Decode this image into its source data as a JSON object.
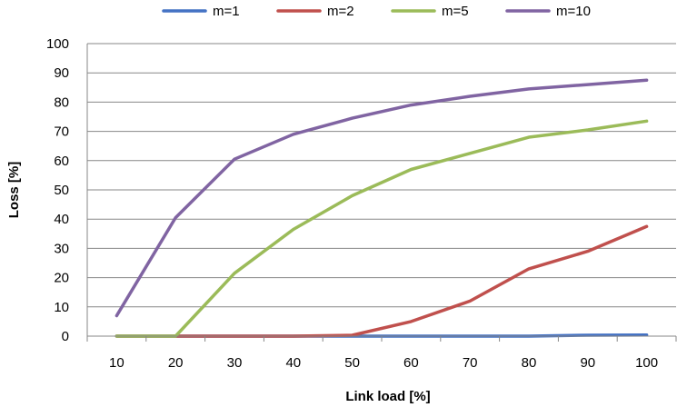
{
  "chart_data": {
    "type": "line",
    "x": [
      10,
      20,
      30,
      40,
      50,
      60,
      70,
      80,
      90,
      100
    ],
    "xlabel": "Link load [%]",
    "ylabel": "Loss [%]",
    "ylim": [
      0,
      100
    ],
    "yticks": [
      0,
      10,
      20,
      30,
      40,
      50,
      60,
      70,
      80,
      90,
      100
    ],
    "grid": true,
    "legend_position": "top",
    "series": [
      {
        "name": "m=1",
        "color": "#4472C4",
        "values": [
          0,
          0,
          0,
          0,
          0,
          0,
          0,
          0,
          0.3,
          0.4
        ]
      },
      {
        "name": "m=2",
        "color": "#C0504D",
        "values": [
          0,
          0,
          0,
          0,
          0.3,
          5,
          12,
          23,
          29,
          37.5
        ]
      },
      {
        "name": "m=5",
        "color": "#9BBB59",
        "values": [
          0,
          0,
          21.5,
          36.5,
          48,
          57,
          62.5,
          68,
          70.5,
          73.5
        ]
      },
      {
        "name": "m=10",
        "color": "#8064A2",
        "values": [
          7,
          40.5,
          60.5,
          69,
          74.5,
          79,
          82,
          84.5,
          86,
          87.5
        ]
      }
    ]
  }
}
